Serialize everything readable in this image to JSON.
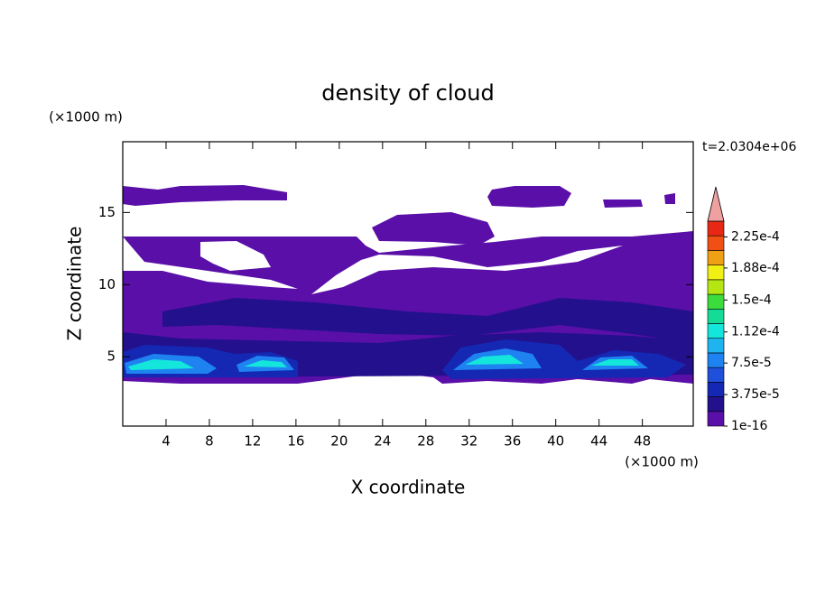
{
  "chart_data": {
    "type": "contour",
    "title": "density of cloud",
    "x_label": "X coordinate",
    "y_label": "Z coordinate",
    "x_unit": "(×1000 m)",
    "y_unit": "(×1000 m)",
    "time_label": "t=2.0304e+06",
    "xlim": [
      0,
      52.7
    ],
    "xticks": [
      4,
      8,
      12,
      16,
      20,
      24,
      28,
      32,
      36,
      40,
      44,
      48
    ],
    "ylim": [
      0.2,
      19.9
    ],
    "yticks": [
      5,
      10,
      15
    ],
    "colorbar": {
      "lim": [
        1e-16,
        0.00024375
      ],
      "ticks": [
        {
          "value": 1e-16,
          "label": "1e-16"
        },
        {
          "value": 3.75e-05,
          "label": "3.75e-5"
        },
        {
          "value": 7.5e-05,
          "label": "7.5e-5"
        },
        {
          "value": 0.000112,
          "label": "1.12e-4"
        },
        {
          "value": 0.00015,
          "label": "1.5e-4"
        },
        {
          "value": 0.000188,
          "label": "1.88e-4"
        },
        {
          "value": 0.000225,
          "label": "2.25e-4"
        }
      ],
      "colors": [
        "#5a0fa8",
        "#23108c",
        "#1428b4",
        "#1e50dc",
        "#1e82f0",
        "#1eb4f0",
        "#14e6dc",
        "#14dc96",
        "#3cdc3c",
        "#b4e614",
        "#f0f014",
        "#f0a014",
        "#f05014",
        "#e62814"
      ],
      "extend_color": "#f0a0a0"
    }
  }
}
